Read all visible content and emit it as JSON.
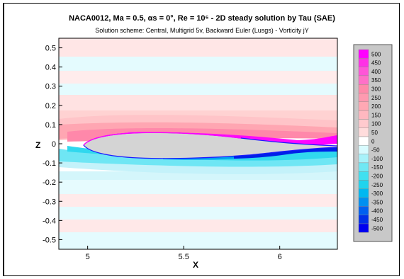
{
  "chart_data": {
    "type": "heatmap",
    "title": "NACA0012, Ma = 0.5, αs = 0°, Re = 10⁶ - 2D steady solution by Tau (SAE)",
    "subtitle": "Solution scheme: Central, Multigrid 5v, Backward Euler (Lusgs) - Vorticity jY",
    "xlabel": "X",
    "ylabel": "Z",
    "xlim": [
      4.85,
      6.3
    ],
    "ylim": [
      -0.55,
      0.55
    ],
    "x_ticks": [
      "5",
      "5.5",
      "6"
    ],
    "y_ticks": [
      "0.5",
      "0.4",
      "0.3",
      "0.2",
      "0.1",
      "0",
      "-0.1",
      "-0.2",
      "-0.3",
      "-0.4",
      "-0.5"
    ],
    "grid": false,
    "legend_placement": "right",
    "legend_levels": [
      "500",
      "450",
      "400",
      "350",
      "300",
      "250",
      "200",
      "150",
      "100",
      "50",
      "0",
      "-50",
      "-100",
      "-150",
      "-200",
      "-250",
      "-300",
      "-350",
      "-400",
      "-450",
      "-500"
    ],
    "legend_colors": [
      "#ff00ff",
      "#ff30e6",
      "#ff55d8",
      "#ff70c8",
      "#ff8aaa",
      "#ff9ab0",
      "#ffa8b4",
      "#ffb8c0",
      "#ffcace",
      "#ffdcdc",
      "#ffffff",
      "#d8fbff",
      "#a8f2fa",
      "#70e8f4",
      "#40e0f0",
      "#20d4ee",
      "#00b8f0",
      "#0090f0",
      "#0060f0",
      "#0030e8",
      "#0000f0"
    ]
  },
  "colors": {
    "positive_strong": "#ff00ff",
    "positive_light": "#ffe0e0",
    "negative_strong": "#0000f0",
    "negative_light": "#e0fafe",
    "airfoil_fill": "#d4d4d4",
    "legend_bg": "#c8c8c8"
  }
}
